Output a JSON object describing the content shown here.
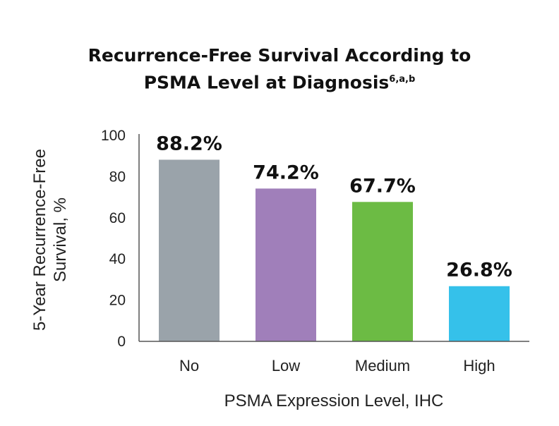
{
  "chart_data": {
    "type": "bar",
    "title": "Recurrence-Free Survival According to",
    "title_line2": "PSMA Level at Diagnosis",
    "title_superscript": "6,a,b",
    "xlabel": "PSMA Expression Level, IHC",
    "ylabel_line1": "5-Year Recurrence-Free",
    "ylabel_line2": "Survival, %",
    "categories": [
      "No",
      "Low",
      "Medium",
      "High"
    ],
    "values": [
      88.2,
      74.2,
      67.7,
      26.8
    ],
    "value_labels": [
      "88.2%",
      "74.2%",
      "67.7%",
      "26.8%"
    ],
    "colors": [
      "#9aa3aa",
      "#a07fba",
      "#6cbb44",
      "#35c1ea"
    ],
    "ylim": [
      0,
      100
    ],
    "yticks": [
      0,
      20,
      40,
      60,
      80,
      100
    ],
    "ytick_labels": [
      "0",
      "20",
      "40",
      "60",
      "80",
      "100"
    ],
    "grid": false,
    "legend": "none"
  }
}
